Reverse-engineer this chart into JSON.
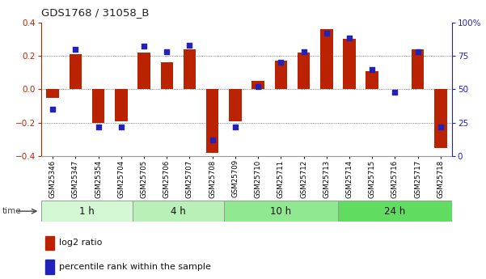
{
  "title": "GDS1768 / 31058_B",
  "samples": [
    "GSM25346",
    "GSM25347",
    "GSM25354",
    "GSM25704",
    "GSM25705",
    "GSM25706",
    "GSM25707",
    "GSM25708",
    "GSM25709",
    "GSM25710",
    "GSM25711",
    "GSM25712",
    "GSM25713",
    "GSM25714",
    "GSM25715",
    "GSM25716",
    "GSM25717",
    "GSM25718"
  ],
  "log2_ratio": [
    -0.05,
    0.21,
    -0.2,
    -0.19,
    0.22,
    0.16,
    0.24,
    -0.38,
    -0.19,
    0.05,
    0.17,
    0.22,
    0.36,
    0.3,
    0.11,
    0.0,
    0.24,
    -0.35
  ],
  "percentile_rank": [
    35,
    80,
    22,
    22,
    82,
    78,
    83,
    12,
    22,
    52,
    70,
    78,
    92,
    88,
    65,
    48,
    78,
    22
  ],
  "time_groups": [
    {
      "label": "1 h",
      "start": 0,
      "end": 4,
      "color": "#d4f7d4"
    },
    {
      "label": "4 h",
      "start": 4,
      "end": 8,
      "color": "#b8f0b8"
    },
    {
      "label": "10 h",
      "start": 8,
      "end": 13,
      "color": "#90e890"
    },
    {
      "label": "24 h",
      "start": 13,
      "end": 18,
      "color": "#60dd60"
    }
  ],
  "bar_color": "#bb2200",
  "dot_color": "#2222bb",
  "ylim_left": [
    -0.4,
    0.4
  ],
  "ylim_right": [
    0,
    100
  ],
  "yticks_left": [
    -0.4,
    -0.2,
    0.0,
    0.2,
    0.4
  ],
  "yticks_right": [
    0,
    25,
    50,
    75,
    100
  ],
  "background_color": "#ffffff",
  "bar_width": 0.55
}
